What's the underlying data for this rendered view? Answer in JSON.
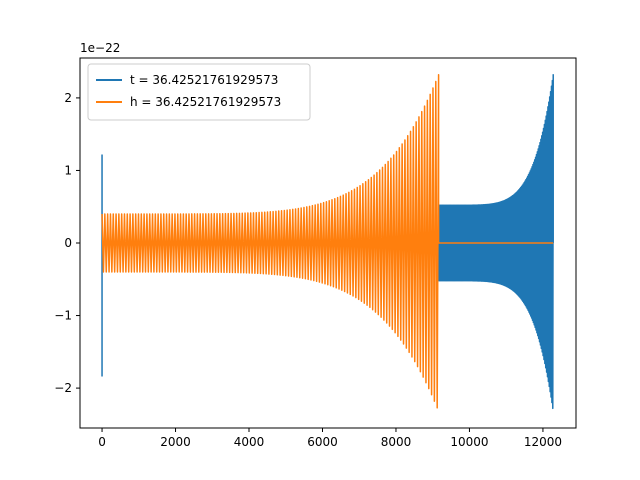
{
  "chart_data": {
    "type": "line",
    "title": "",
    "xlabel": "",
    "ylabel": "",
    "xlim": [
      -600,
      12900
    ],
    "ylim": [
      -2.55,
      2.55
    ],
    "y_offset_label": "1e−22",
    "x_ticks": [
      0,
      2000,
      4000,
      6000,
      8000,
      10000,
      12000
    ],
    "x_tick_labels": [
      "0",
      "2000",
      "4000",
      "6000",
      "8000",
      "10000",
      "12000"
    ],
    "y_ticks": [
      -2,
      -1,
      0,
      1,
      2
    ],
    "y_tick_labels": [
      "−2",
      "−1",
      "0",
      "1",
      "2"
    ],
    "grid": false,
    "legend_position": "upper-left",
    "series": [
      {
        "name": "t = 36.42521761929573",
        "color": "#1f77b4",
        "segments": [
          {
            "x_start": 0,
            "x_end": 9160,
            "amplitude": 0.0,
            "note": "flat zero"
          },
          {
            "x_start": 9160,
            "x_end": 12280,
            "amplitude_start": 0.52,
            "amplitude_end": 2.32,
            "cycles": 130
          }
        ],
        "spikes": [
          {
            "x": 0,
            "y_max": 1.22,
            "y_min": -1.84
          }
        ]
      },
      {
        "name": "h = 36.42521761929573",
        "color": "#ff7f0e",
        "segments": [
          {
            "x_start": 0,
            "x_end": 9160,
            "amplitude_start": 0.4,
            "amplitude_end": 2.32,
            "cycles": 120
          },
          {
            "x_start": 9160,
            "x_end": 12280,
            "amplitude": 0.0,
            "note": "flat zero"
          }
        ],
        "spikes": []
      }
    ]
  }
}
